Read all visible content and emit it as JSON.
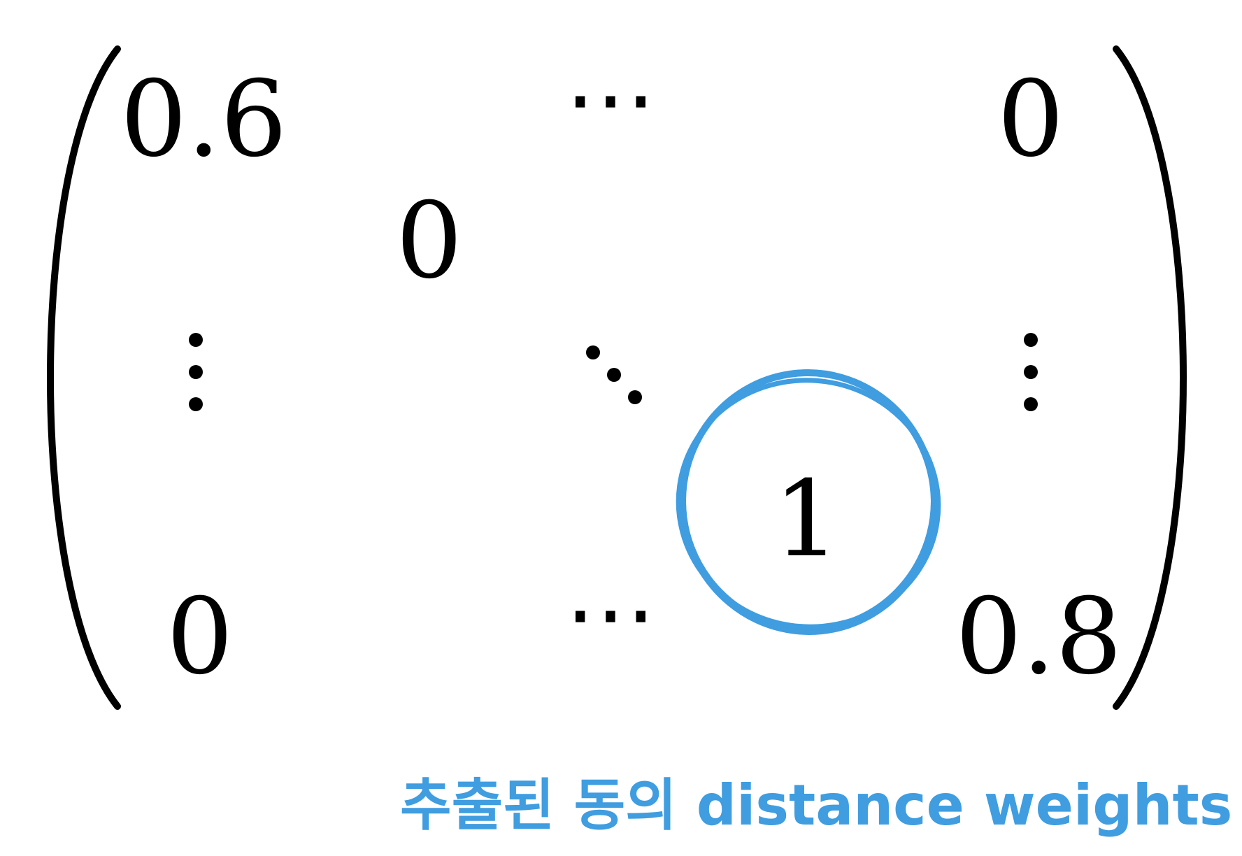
{
  "matrix": {
    "row1": {
      "c1": "0.6",
      "c2": "⋯",
      "c3": "0"
    },
    "row2": {
      "c2": "0"
    },
    "row3": {
      "c1": "⋮",
      "c2": "⋱",
      "c3": "⋮"
    },
    "row4": {
      "c3": "1"
    },
    "row5": {
      "c1": "0",
      "c2": "⋯",
      "c4": "0.8"
    },
    "highlighted_entry": "1"
  },
  "annotation": {
    "text": "추출된 동의 distance weights",
    "color": "#3f9de0"
  },
  "colors": {
    "text": "#000000",
    "highlight": "#3f9de0",
    "background": "#ffffff"
  }
}
